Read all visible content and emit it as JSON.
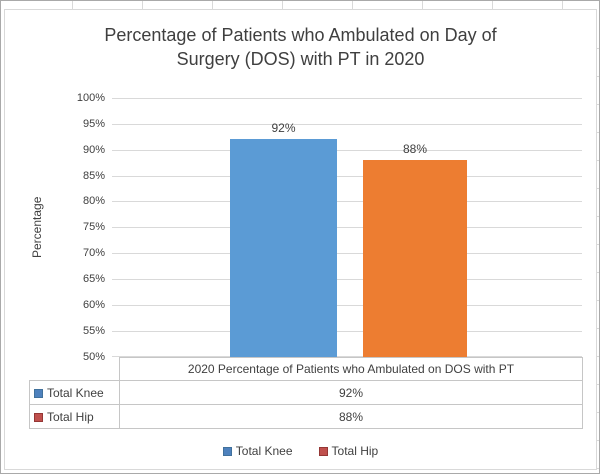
{
  "chart_data": {
    "type": "bar",
    "title": "Percentage of Patients who Ambulated on Day of Surgery (DOS) with PT in 2020",
    "ylabel": "Percentage",
    "category_label": "2020 Percentage of Patients who Ambulated on DOS with PT",
    "ylim": [
      50,
      100
    ],
    "y_tick_step": 5,
    "y_ticks": [
      "100%",
      "95%",
      "90%",
      "85%",
      "80%",
      "75%",
      "70%",
      "65%",
      "60%",
      "55%",
      "50%"
    ],
    "grid": true,
    "legend_position": "bottom",
    "series": [
      {
        "name": "Total Knee",
        "value": 92,
        "value_label": "92%",
        "bar_color": "#5b9bd5",
        "marker_color": "#4e81bd",
        "marker_border": "#41719c"
      },
      {
        "name": "Total Hip",
        "value": 88,
        "value_label": "88%",
        "bar_color": "#ed7d31",
        "marker_color": "#c0504d",
        "marker_border": "#953735"
      }
    ],
    "colors": {
      "gridline": "#d9d9d9",
      "chart_border": "#d9d9d9",
      "text": "#404040",
      "title_text": "#3f3f3f"
    }
  }
}
